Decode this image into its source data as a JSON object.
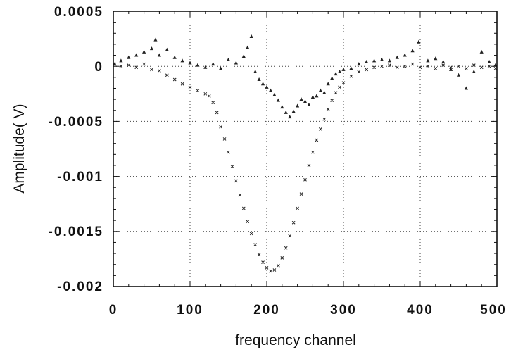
{
  "chart_data": {
    "type": "scatter",
    "xlabel": "frequency channel",
    "ylabel": "Amplitude( V)",
    "xlim": [
      0,
      500
    ],
    "ylim": [
      -0.002,
      0.0005
    ],
    "grid": true,
    "x_ticks": [
      "0",
      "100",
      "200",
      "300",
      "400",
      "500"
    ],
    "y_ticks": [
      "0.0005",
      "0",
      "-0.0005",
      "-0.001",
      "-0.0015",
      "-0.002"
    ],
    "series": [
      {
        "marker": "x",
        "values": [
          [
            0,
            2e-05
          ],
          [
            10,
            0.0
          ],
          [
            20,
            1e-05
          ],
          [
            30,
            -1e-05
          ],
          [
            40,
            2e-05
          ],
          [
            50,
            -3e-05
          ],
          [
            60,
            -4e-05
          ],
          [
            70,
            -8e-05
          ],
          [
            80,
            -0.00012
          ],
          [
            90,
            -0.00016
          ],
          [
            100,
            -0.00019
          ],
          [
            110,
            -0.00022
          ],
          [
            120,
            -0.00025
          ],
          [
            125,
            -0.00027
          ],
          [
            130,
            -0.00033
          ],
          [
            135,
            -0.00042
          ],
          [
            140,
            -0.00055
          ],
          [
            145,
            -0.00066
          ],
          [
            150,
            -0.00078
          ],
          [
            155,
            -0.00091
          ],
          [
            160,
            -0.00104
          ],
          [
            165,
            -0.00117
          ],
          [
            170,
            -0.00129
          ],
          [
            175,
            -0.00141
          ],
          [
            180,
            -0.00152
          ],
          [
            185,
            -0.00162
          ],
          [
            190,
            -0.00171
          ],
          [
            195,
            -0.00178
          ],
          [
            200,
            -0.00183
          ],
          [
            205,
            -0.00186
          ],
          [
            210,
            -0.00185
          ],
          [
            215,
            -0.00181
          ],
          [
            220,
            -0.00174
          ],
          [
            225,
            -0.00165
          ],
          [
            230,
            -0.00154
          ],
          [
            235,
            -0.00142
          ],
          [
            240,
            -0.00129
          ],
          [
            245,
            -0.00116
          ],
          [
            250,
            -0.00103
          ],
          [
            255,
            -0.0009
          ],
          [
            260,
            -0.00078
          ],
          [
            265,
            -0.00067
          ],
          [
            270,
            -0.00057
          ],
          [
            275,
            -0.00048
          ],
          [
            280,
            -0.00039
          ],
          [
            285,
            -0.00031
          ],
          [
            290,
            -0.00024
          ],
          [
            295,
            -0.00019
          ],
          [
            300,
            -0.00015
          ],
          [
            310,
            -9e-05
          ],
          [
            320,
            -5e-05
          ],
          [
            330,
            -3e-05
          ],
          [
            340,
            -1e-05
          ],
          [
            350,
            0.0
          ],
          [
            360,
            1e-05
          ],
          [
            370,
            -1e-05
          ],
          [
            380,
            0.0
          ],
          [
            390,
            2e-05
          ],
          [
            400,
            -1e-05
          ],
          [
            410,
            0.0
          ],
          [
            420,
            -2e-05
          ],
          [
            430,
            1e-05
          ],
          [
            440,
            -1e-05
          ],
          [
            450,
            0.0
          ],
          [
            460,
            -2e-05
          ],
          [
            470,
            1e-05
          ],
          [
            480,
            -1e-05
          ],
          [
            490,
            0.0
          ],
          [
            500,
            -2e-05
          ]
        ]
      },
      {
        "marker": "triangle",
        "values": [
          [
            0,
            2e-05
          ],
          [
            10,
            5e-05
          ],
          [
            20,
            8e-05
          ],
          [
            30,
            0.0001
          ],
          [
            40,
            0.00013
          ],
          [
            50,
            0.00016
          ],
          [
            55,
            0.00024
          ],
          [
            60,
            0.0001
          ],
          [
            70,
            0.00015
          ],
          [
            80,
            8e-05
          ],
          [
            90,
            5e-05
          ],
          [
            100,
            3e-05
          ],
          [
            110,
            1e-05
          ],
          [
            120,
            -1e-05
          ],
          [
            130,
            2e-05
          ],
          [
            140,
            -2e-05
          ],
          [
            150,
            6e-05
          ],
          [
            160,
            3e-05
          ],
          [
            170,
            9e-05
          ],
          [
            175,
            0.00017
          ],
          [
            180,
            0.00027
          ],
          [
            185,
            -5e-05
          ],
          [
            190,
            -0.00012
          ],
          [
            195,
            -0.00016
          ],
          [
            200,
            -0.00019
          ],
          [
            205,
            -0.00022
          ],
          [
            210,
            -0.00026
          ],
          [
            215,
            -0.00031
          ],
          [
            220,
            -0.00037
          ],
          [
            225,
            -0.00042
          ],
          [
            230,
            -0.00046
          ],
          [
            235,
            -0.00041
          ],
          [
            240,
            -0.00036
          ],
          [
            245,
            -0.0003
          ],
          [
            250,
            -0.00032
          ],
          [
            255,
            -0.00035
          ],
          [
            260,
            -0.00028
          ],
          [
            265,
            -0.00027
          ],
          [
            270,
            -0.00022
          ],
          [
            275,
            -0.00024
          ],
          [
            280,
            -0.00016
          ],
          [
            285,
            -0.00011
          ],
          [
            290,
            -7e-05
          ],
          [
            295,
            -5e-05
          ],
          [
            300,
            -3e-05
          ],
          [
            310,
            -2e-05
          ],
          [
            320,
            2e-05
          ],
          [
            330,
            4e-05
          ],
          [
            340,
            5e-05
          ],
          [
            350,
            6e-05
          ],
          [
            360,
            5e-05
          ],
          [
            370,
            8e-05
          ],
          [
            380,
            0.0001
          ],
          [
            390,
            0.00014
          ],
          [
            398,
            0.00022
          ],
          [
            410,
            5e-05
          ],
          [
            420,
            7e-05
          ],
          [
            430,
            4e-05
          ],
          [
            440,
            -3e-05
          ],
          [
            450,
            -8e-05
          ],
          [
            460,
            -0.0002
          ],
          [
            470,
            -5e-05
          ],
          [
            480,
            0.00013
          ],
          [
            490,
            4e-05
          ],
          [
            500,
            1e-05
          ]
        ]
      }
    ]
  },
  "style": {
    "text_color": "#111111",
    "marker_color": "#222222",
    "grid_color": "#444444",
    "background": "#ffffff"
  }
}
